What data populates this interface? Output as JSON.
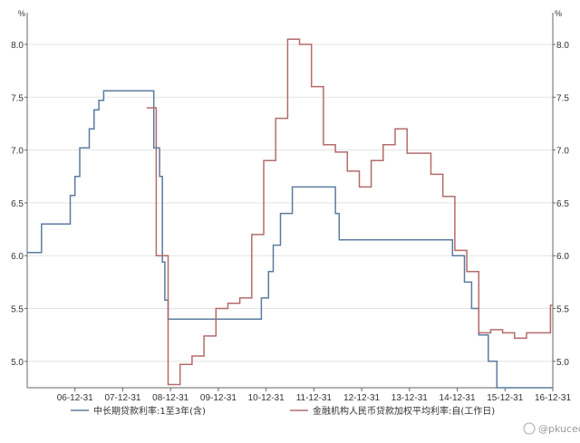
{
  "chart_data": {
    "type": "line",
    "unit_left": "%",
    "unit_right": "%",
    "yticks": [
      "8.0",
      "7.5",
      "7.0",
      "6.5",
      "6.0",
      "5.5",
      "5.0"
    ],
    "ylim": [
      4.75,
      8.3
    ],
    "xticks": [
      "06-12-31",
      "07-12-31",
      "08-12-31",
      "09-12-31",
      "10-12-31",
      "11-12-31",
      "12-12-31",
      "13-12-31",
      "14-12-31",
      "15-12-31",
      "16-12-31"
    ],
    "xlim": [
      2006.0,
      2017.0
    ],
    "grid": true,
    "watermark": "@pkuced",
    "series": [
      {
        "name": "中长期贷款利率:1至3年(含)",
        "color": "#5b7b9e",
        "x": [
          2006.0,
          2006.3,
          2006.3,
          2006.9,
          2006.9,
          2007.0,
          2007.0,
          2007.1,
          2007.1,
          2007.3,
          2007.3,
          2007.4,
          2007.4,
          2007.5,
          2007.5,
          2007.6,
          2007.6,
          2007.9,
          2007.9,
          2008.0,
          2008.0,
          2008.65,
          2008.65,
          2008.77,
          2008.77,
          2008.83,
          2008.83,
          2008.88,
          2008.88,
          2008.95,
          2008.95,
          2010.9,
          2010.9,
          2011.05,
          2011.05,
          2011.15,
          2011.15,
          2011.3,
          2011.3,
          2011.55,
          2011.55,
          2012.45,
          2012.45,
          2012.53,
          2012.53,
          2014.9,
          2014.9,
          2015.15,
          2015.15,
          2015.3,
          2015.3,
          2015.45,
          2015.45,
          2015.65,
          2015.65,
          2015.83,
          2015.83,
          2017.0
        ],
        "y": [
          6.03,
          6.03,
          6.3,
          6.3,
          6.57,
          6.57,
          6.75,
          6.75,
          7.02,
          7.02,
          7.2,
          7.2,
          7.38,
          7.38,
          7.47,
          7.47,
          7.56,
          7.56,
          7.56,
          7.56,
          7.56,
          7.56,
          7.02,
          7.02,
          6.75,
          6.75,
          5.94,
          5.94,
          5.58,
          5.58,
          5.4,
          5.4,
          5.6,
          5.6,
          5.85,
          5.85,
          6.1,
          6.1,
          6.4,
          6.4,
          6.65,
          6.65,
          6.4,
          6.4,
          6.15,
          6.15,
          6.0,
          6.0,
          5.75,
          5.75,
          5.5,
          5.5,
          5.25,
          5.25,
          5.0,
          5.0,
          4.75,
          4.75
        ]
      },
      {
        "name": "金融机构人民币贷款加权平均利率:自(工作日)",
        "color": "#b56b6b",
        "x": [
          2008.5,
          2008.6,
          2008.6,
          2008.7,
          2008.7,
          2008.95,
          2008.95,
          2009.2,
          2009.2,
          2009.45,
          2009.45,
          2009.7,
          2009.7,
          2009.95,
          2009.95,
          2010.2,
          2010.2,
          2010.45,
          2010.45,
          2010.7,
          2010.7,
          2010.95,
          2010.95,
          2011.2,
          2011.2,
          2011.45,
          2011.45,
          2011.7,
          2011.7,
          2011.95,
          2011.95,
          2012.2,
          2012.2,
          2012.45,
          2012.45,
          2012.7,
          2012.7,
          2012.95,
          2012.95,
          2013.2,
          2013.2,
          2013.45,
          2013.45,
          2013.7,
          2013.7,
          2013.95,
          2013.95,
          2014.2,
          2014.2,
          2014.45,
          2014.45,
          2014.7,
          2014.7,
          2014.95,
          2014.95,
          2015.2,
          2015.2,
          2015.45,
          2015.45,
          2015.7,
          2015.7,
          2015.95,
          2015.95,
          2016.2,
          2016.2,
          2016.45,
          2016.45,
          2016.7,
          2016.7,
          2016.95,
          2016.95,
          2017.0
        ],
        "y": [
          7.4,
          7.4,
          7.4,
          7.4,
          6.0,
          6.0,
          4.78,
          4.78,
          4.97,
          4.97,
          5.05,
          5.05,
          5.24,
          5.24,
          5.5,
          5.5,
          5.55,
          5.55,
          5.6,
          5.6,
          6.2,
          6.2,
          6.9,
          6.9,
          7.3,
          7.3,
          8.05,
          8.05,
          8.0,
          8.0,
          7.6,
          7.6,
          7.05,
          7.05,
          6.98,
          6.98,
          6.8,
          6.8,
          6.65,
          6.65,
          6.9,
          6.9,
          7.05,
          7.05,
          7.2,
          7.2,
          6.97,
          6.97,
          6.97,
          6.97,
          6.77,
          6.77,
          6.56,
          6.56,
          6.05,
          6.05,
          5.85,
          5.85,
          5.27,
          5.27,
          5.3,
          5.3,
          5.27,
          5.27,
          5.22,
          5.22,
          5.27,
          5.27,
          5.27,
          5.27,
          5.53,
          5.53
        ]
      }
    ]
  }
}
